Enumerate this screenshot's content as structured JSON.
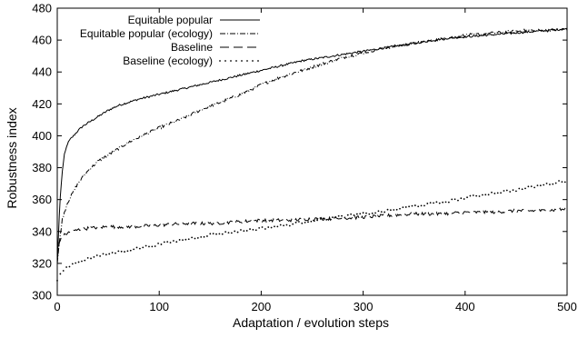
{
  "chart_data": {
    "type": "line",
    "title": "",
    "xlabel": "Adaptation / evolution steps",
    "ylabel": "Robustness index",
    "xlim": [
      0,
      500
    ],
    "ylim": [
      300,
      480
    ],
    "xticks": [
      0,
      100,
      200,
      300,
      400,
      500
    ],
    "yticks": [
      300,
      320,
      340,
      360,
      380,
      400,
      420,
      440,
      460,
      480
    ],
    "grid": false,
    "legend_position": "top-left",
    "series": [
      {
        "name": "Equitable popular",
        "style": "solid",
        "color": "#000000",
        "x": [
          0,
          1,
          2,
          3,
          5,
          7,
          10,
          13,
          16,
          20,
          25,
          30,
          40,
          50,
          60,
          70,
          80,
          100,
          120,
          140,
          160,
          180,
          200,
          220,
          240,
          260,
          280,
          300,
          320,
          340,
          360,
          380,
          400,
          420,
          440,
          460,
          480,
          500
        ],
        "y": [
          320,
          335,
          350,
          362,
          378,
          388,
          395,
          398,
          400,
          403,
          406,
          408,
          412,
          416,
          419,
          421,
          423,
          426,
          429,
          432,
          435,
          438,
          441,
          444,
          447,
          449,
          451,
          453,
          455,
          457,
          459,
          461,
          462,
          463,
          464,
          465,
          466,
          467
        ]
      },
      {
        "name": "Equitable popular (ecology)",
        "style": "dash-dot",
        "color": "#000000",
        "x": [
          0,
          2,
          5,
          10,
          15,
          20,
          30,
          40,
          50,
          60,
          70,
          80,
          90,
          100,
          120,
          140,
          160,
          180,
          200,
          220,
          240,
          260,
          280,
          300,
          320,
          340,
          360,
          380,
          400,
          420,
          440,
          460,
          480,
          500
        ],
        "y": [
          320,
          333,
          348,
          358,
          364,
          370,
          378,
          384,
          388,
          392,
          396,
          399,
          402,
          405,
          410,
          416,
          421,
          426,
          432,
          437,
          441,
          445,
          449,
          452,
          455,
          457,
          459,
          461,
          463,
          464,
          465,
          466,
          466,
          467
        ]
      },
      {
        "name": "Baseline",
        "style": "dashed",
        "color": "#000000",
        "x": [
          0,
          2,
          5,
          10,
          15,
          20,
          30,
          50,
          75,
          100,
          125,
          150,
          175,
          200,
          225,
          250,
          275,
          300,
          325,
          350,
          375,
          400,
          425,
          450,
          475,
          500
        ],
        "y": [
          322,
          333,
          337,
          339,
          340,
          341,
          342,
          343,
          343,
          344,
          345,
          345,
          346,
          347,
          347,
          348,
          348,
          349,
          350,
          351,
          351,
          352,
          352,
          353,
          353,
          354
        ]
      },
      {
        "name": "Baseline (ecology)",
        "style": "dotted",
        "color": "#000000",
        "x": [
          0,
          5,
          10,
          20,
          30,
          50,
          75,
          100,
          125,
          150,
          175,
          200,
          225,
          250,
          275,
          300,
          325,
          350,
          375,
          400,
          425,
          450,
          475,
          500
        ],
        "y": [
          310,
          315,
          318,
          321,
          323,
          326,
          329,
          332,
          335,
          338,
          340,
          342,
          344,
          347,
          349,
          351,
          353,
          356,
          358,
          361,
          364,
          366,
          369,
          372
        ]
      }
    ]
  }
}
